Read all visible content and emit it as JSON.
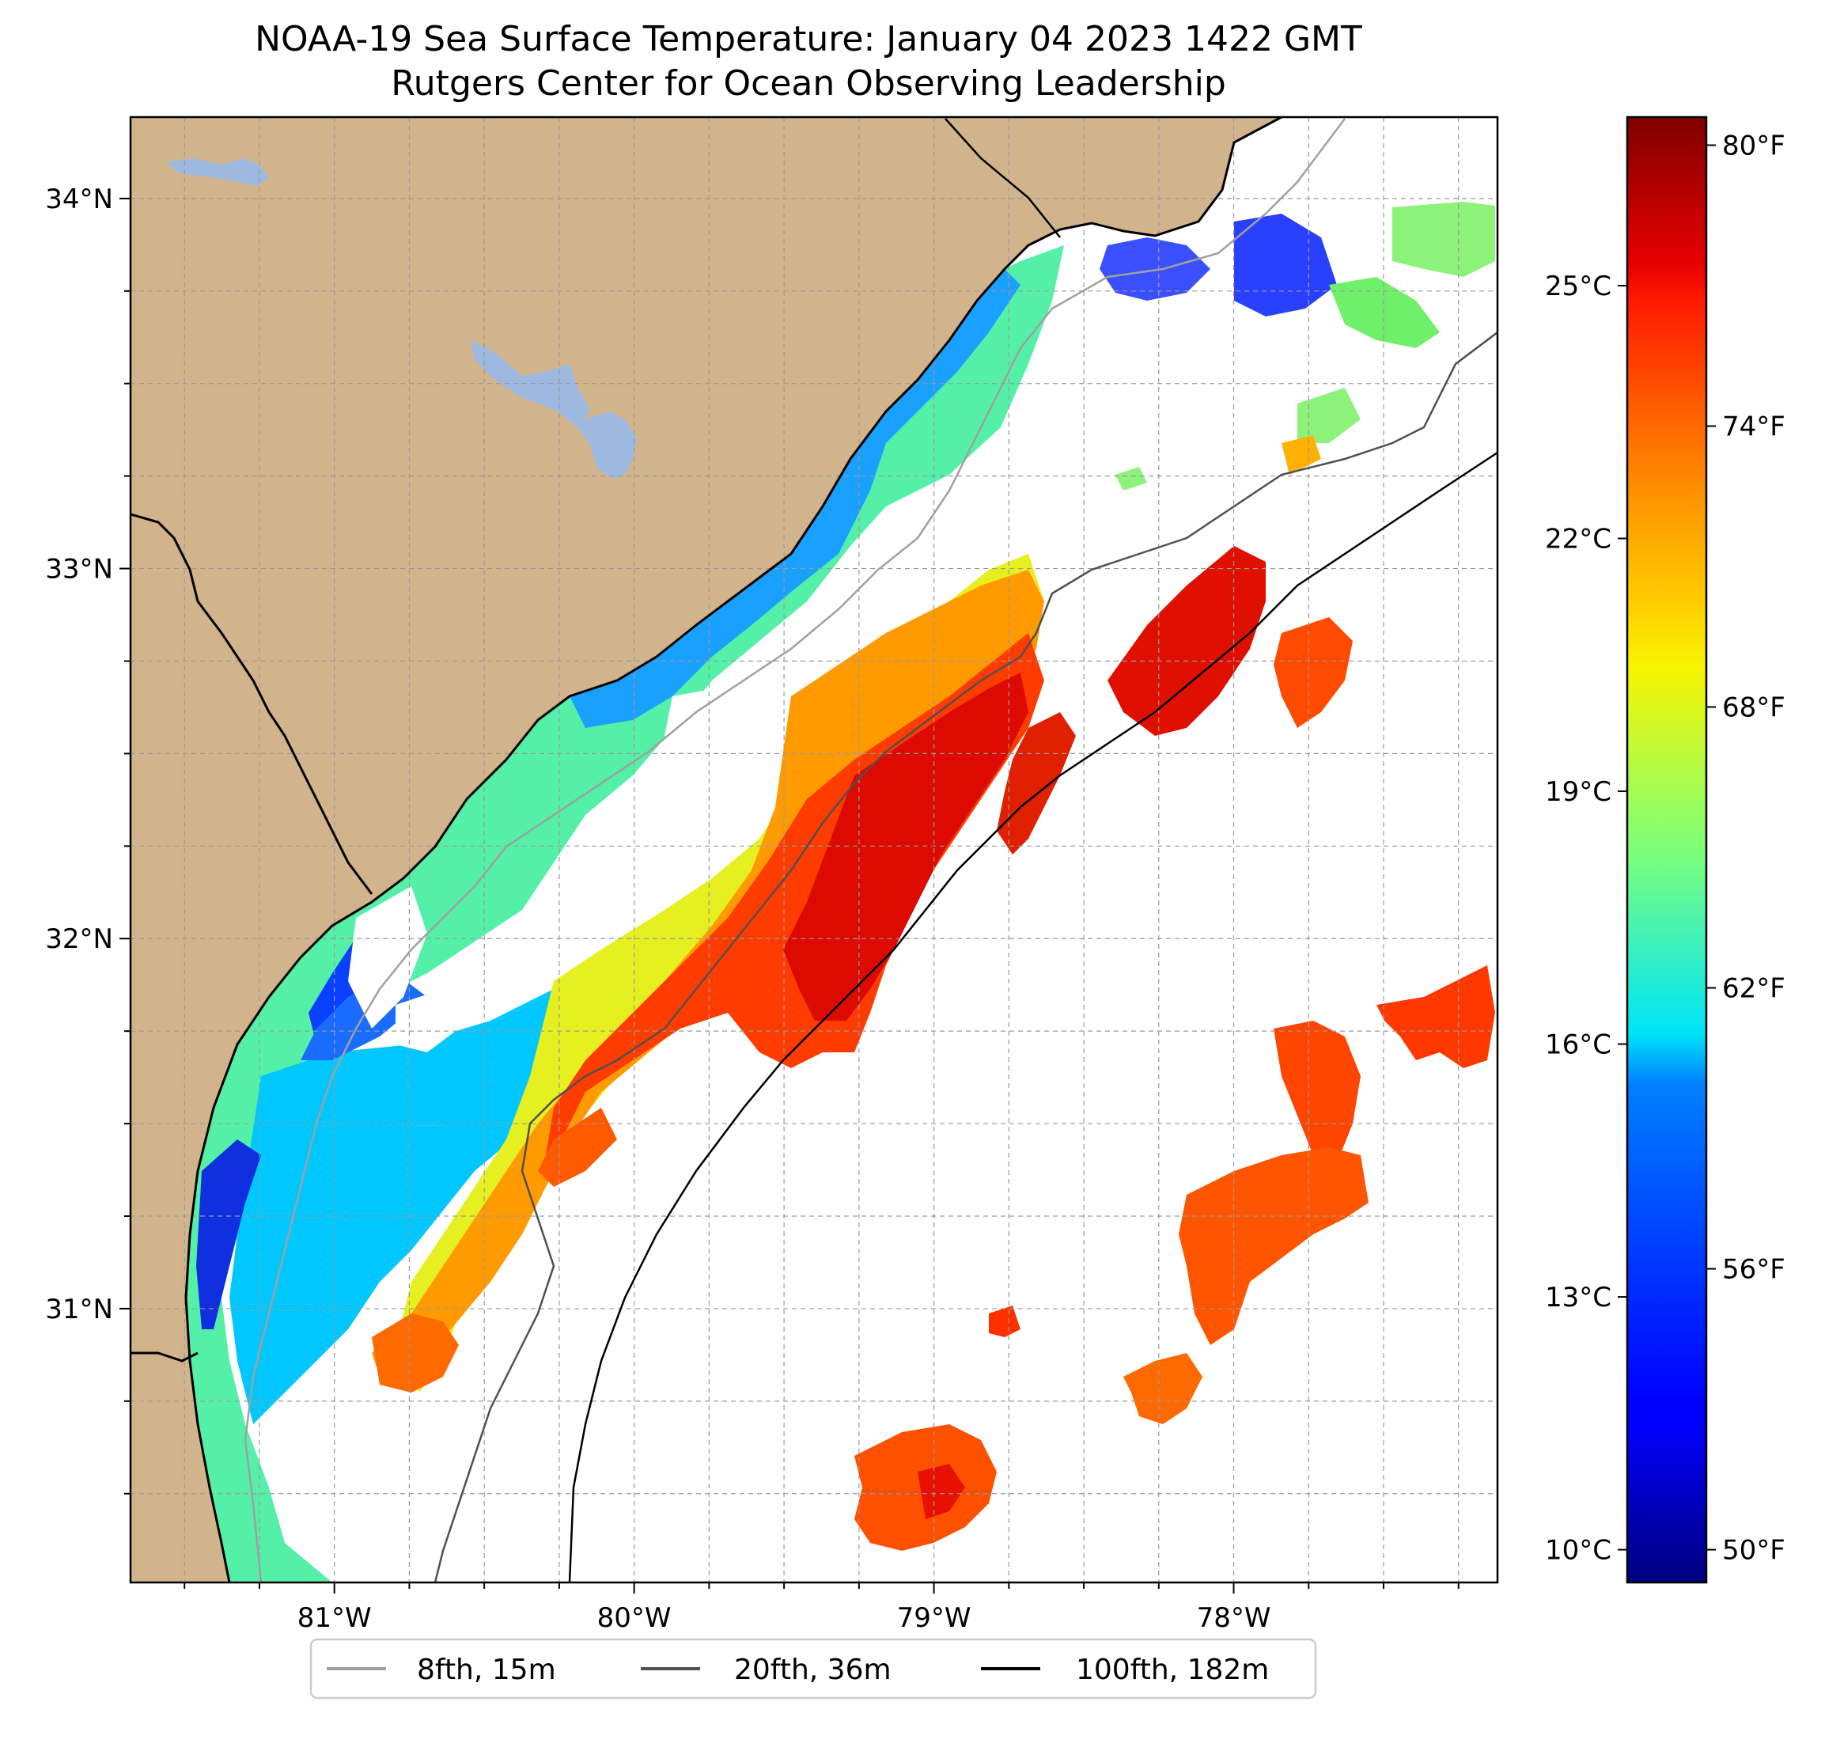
{
  "title": {
    "line1": "NOAA-19 Sea Surface Temperature: January 04 2023 1422 GMT",
    "line2": "Rutgers Center for Ocean Observing Leadership"
  },
  "map": {
    "lon_range": [
      -81.68,
      -77.12
    ],
    "lat_range": [
      30.26,
      34.22
    ],
    "lon_ticks": [
      {
        "value": -81,
        "label": "81°W"
      },
      {
        "value": -80,
        "label": "80°W"
      },
      {
        "value": -79,
        "label": "79°W"
      },
      {
        "value": -78,
        "label": "78°W"
      }
    ],
    "lat_ticks": [
      {
        "value": 34,
        "label": "34°N"
      },
      {
        "value": 33,
        "label": "33°N"
      },
      {
        "value": 32,
        "label": "32°N"
      },
      {
        "value": 31,
        "label": "31°N"
      }
    ],
    "grid": "dashed",
    "colors": {
      "land": "#d2b48c",
      "water_body": "#9db9e1",
      "no_data": "#ffffff"
    }
  },
  "colorbar": {
    "colormap": "jet",
    "celsius_ticks": [
      {
        "value": 10,
        "label": "10°C"
      },
      {
        "value": 13,
        "label": "13°C"
      },
      {
        "value": 16,
        "label": "16°C"
      },
      {
        "value": 19,
        "label": "19°C"
      },
      {
        "value": 22,
        "label": "22°C"
      },
      {
        "value": 25,
        "label": "25°C"
      }
    ],
    "fahrenheit_ticks": [
      {
        "value": 50,
        "label": "50°F"
      },
      {
        "value": 56,
        "label": "56°F"
      },
      {
        "value": 62,
        "label": "62°F"
      },
      {
        "value": 68,
        "label": "68°F"
      },
      {
        "value": 74,
        "label": "74°F"
      },
      {
        "value": 80,
        "label": "80°F"
      }
    ],
    "range_f": [
      49.3,
      80.6
    ]
  },
  "legend": {
    "placement": "bottom-center",
    "items": [
      {
        "label": "8fth, 15m",
        "color": "#a0a0a0"
      },
      {
        "label": "20fth, 36m",
        "color": "#505050"
      },
      {
        "label": "100fth, 182m",
        "color": "#000000"
      }
    ]
  }
}
